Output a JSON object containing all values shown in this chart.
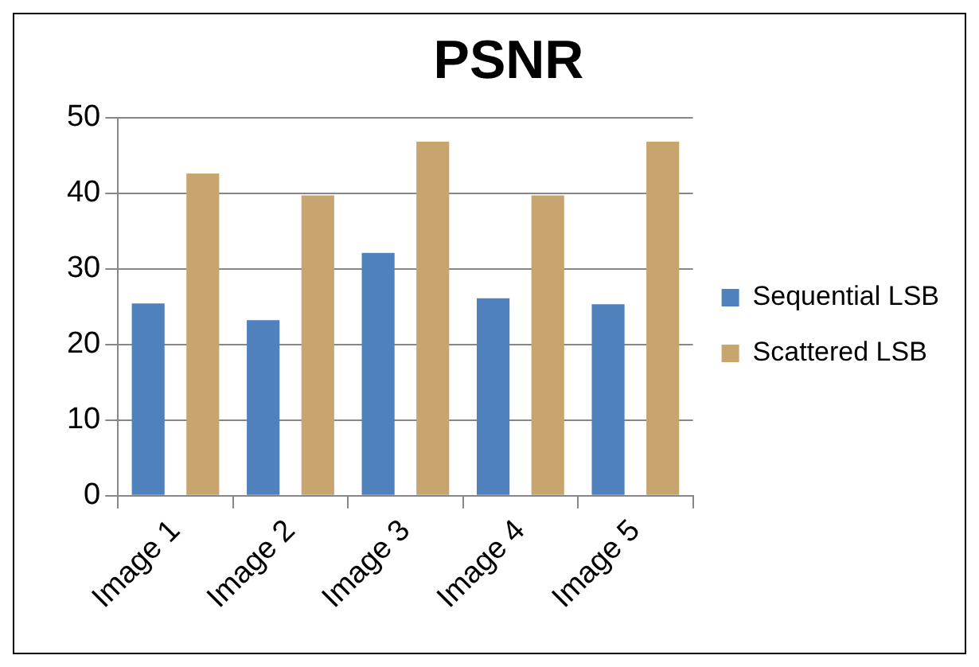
{
  "chart_data": {
    "type": "bar",
    "title": "PSNR",
    "categories": [
      "Image 1",
      "Image 2",
      "Image 3",
      "Image 4",
      "Image 5"
    ],
    "series": [
      {
        "name": "Sequential LSB",
        "color": "#4f81bd",
        "values": [
          25.4,
          23.2,
          32.1,
          26.1,
          25.3
        ]
      },
      {
        "name": "Scattered LSB",
        "color": "#c8a56e",
        "values": [
          42.6,
          39.7,
          46.8,
          39.7,
          46.8
        ]
      }
    ],
    "ylim": [
      0,
      50
    ],
    "yticks": [
      0,
      10,
      20,
      30,
      40,
      50
    ],
    "grid": "y",
    "legend": "right"
  }
}
